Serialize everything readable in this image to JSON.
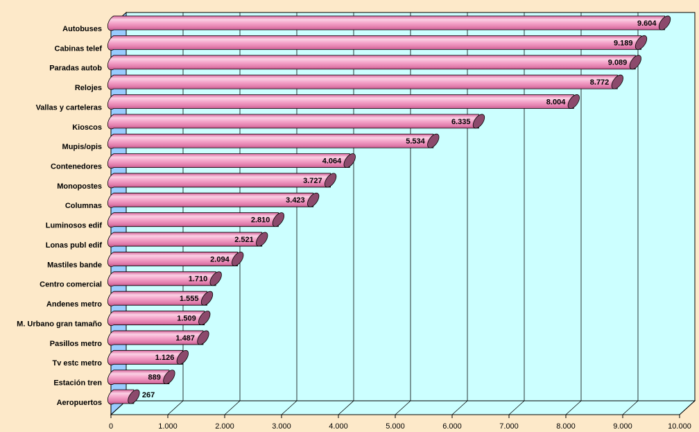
{
  "chart_data": {
    "type": "bar3d-horizontal",
    "categories": [
      "Autobuses",
      "Cabinas telef",
      "Paradas autob",
      "Relojes",
      "Vallas y carteleras",
      "Kioscos",
      "Mupis/opis",
      "Contenedores",
      "Monopostes",
      "Columnas",
      "Luminosos edif",
      "Lonas publ edif",
      "Mastiles bande",
      "Centro comercial",
      "Andenes metro",
      "M. Urbano gran tamaño",
      "Pasillos metro",
      "Tv estc metro",
      "Estación tren",
      "Aeropuertos"
    ],
    "values": [
      9604,
      9189,
      9089,
      8772,
      8004,
      6335,
      5534,
      4064,
      3727,
      3423,
      2810,
      2521,
      2094,
      1710,
      1555,
      1509,
      1487,
      1126,
      889,
      267
    ],
    "value_labels": [
      "9.604",
      "9.189",
      "9.089",
      "8.772",
      "8.004",
      "6.335",
      "5.534",
      "4.064",
      "3.727",
      "3.423",
      "2.810",
      "2.521",
      "2.094",
      "1.710",
      "1.555",
      "1.509",
      "1.487",
      "1.126",
      "889",
      "267"
    ],
    "xlim": [
      0,
      10000
    ],
    "xticks": [
      0,
      {
        "value": 1000,
        "label": "1.000"
      },
      {
        "value": 2000,
        "label": "2.000"
      },
      {
        "value": 3000,
        "label": "3.000"
      },
      {
        "value": 4000,
        "label": "4.000"
      },
      {
        "value": 5000,
        "label": "5.000"
      },
      {
        "value": 6000,
        "label": "6.000"
      },
      {
        "value": 7000,
        "label": "7.000"
      },
      {
        "value": 8000,
        "label": "8.000"
      },
      {
        "value": 9000,
        "label": "9.000"
      },
      {
        "value": 10000,
        "label": "10.000"
      }
    ],
    "color": "#f4a3c9",
    "cap_color": "#8c4a6c",
    "wall_color": "#ccffff",
    "background": "#fde9c9",
    "grid": true
  }
}
